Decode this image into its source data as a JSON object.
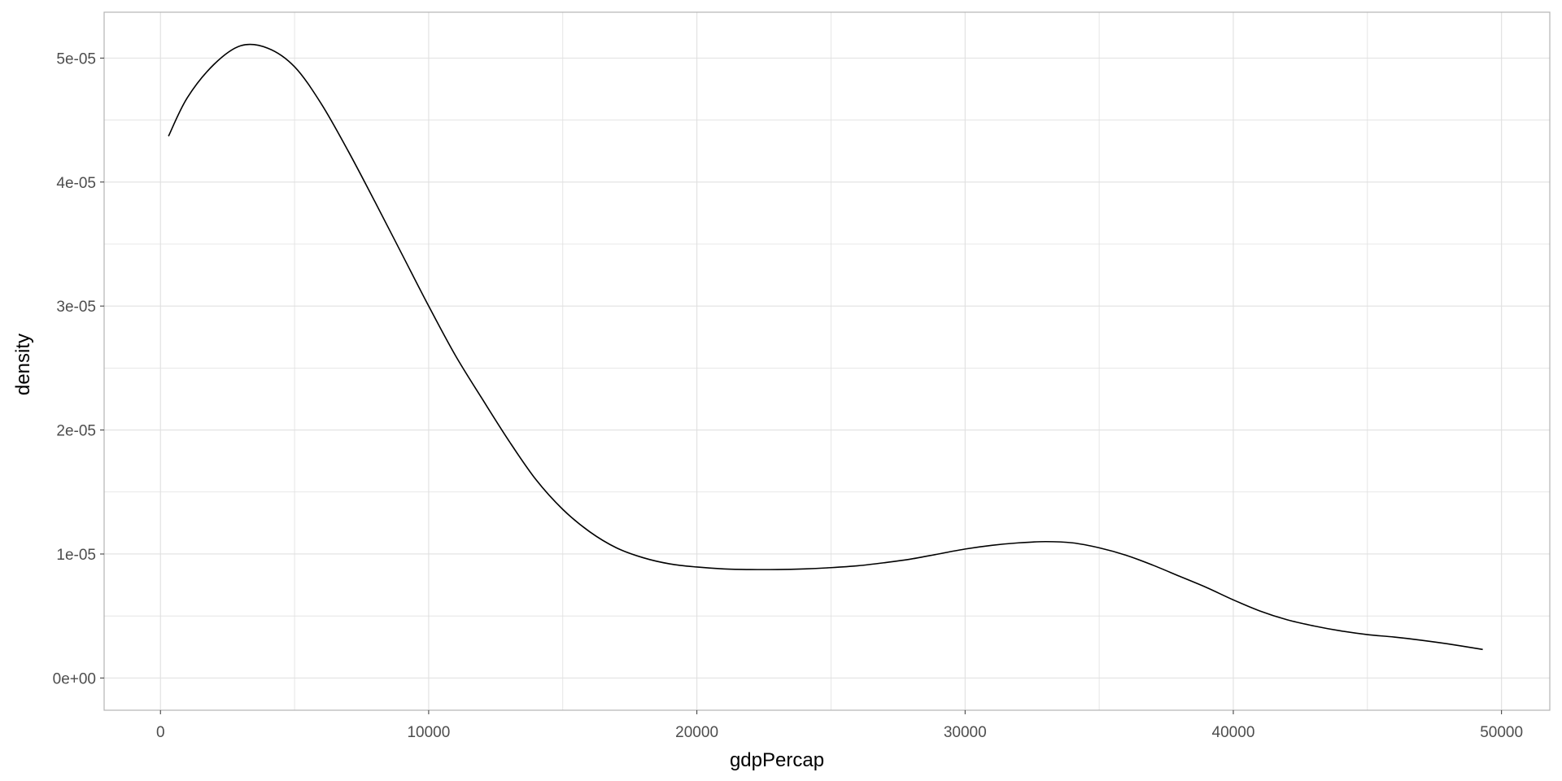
{
  "chart_data": {
    "type": "line",
    "title": "",
    "xlabel": "gdpPercap",
    "ylabel": "density",
    "xlim": [
      -2100,
      51800
    ],
    "ylim": [
      -2.6e-06,
      5.37e-05
    ],
    "x_ticks": [
      0,
      10000,
      20000,
      30000,
      40000,
      50000
    ],
    "x_tick_labels": [
      "0",
      "10000",
      "20000",
      "30000",
      "40000",
      "50000"
    ],
    "y_ticks": [
      0,
      1e-05,
      2e-05,
      3e-05,
      4e-05,
      5e-05
    ],
    "y_tick_labels": [
      "0e+00",
      "1e-05",
      "2e-05",
      "3e-05",
      "4e-05",
      "5e-05"
    ],
    "grid": true,
    "legend": "none",
    "colors": {
      "line": "#000000",
      "grid": "#e0e0e0",
      "panel_border": "#b3b3b3",
      "tick_label": "#4d4d4d"
    },
    "series": [
      {
        "x": [
          300,
          1000,
          2000,
          3000,
          4000,
          5000,
          6000,
          7000,
          8000,
          9000,
          10000,
          11000,
          12000,
          13000,
          14000,
          15000,
          16000,
          17000,
          18000,
          19000,
          20000,
          21000,
          22000,
          23000,
          24000,
          25000,
          26000,
          27000,
          28000,
          29000,
          30000,
          31000,
          32000,
          33000,
          34000,
          35000,
          36000,
          37000,
          38000,
          39000,
          40000,
          41000,
          42000,
          43000,
          44000,
          45000,
          46000,
          47000,
          48000,
          49300
        ],
        "y": [
          4.37e-05,
          4.68e-05,
          4.95e-05,
          5.1e-05,
          5.08e-05,
          4.93e-05,
          4.63e-05,
          4.25e-05,
          3.84e-05,
          3.42e-05,
          3e-05,
          2.6e-05,
          2.25e-05,
          1.91e-05,
          1.6e-05,
          1.36e-05,
          1.18e-05,
          1.05e-05,
          9.7e-06,
          9.2e-06,
          8.95e-06,
          8.8e-06,
          8.75e-06,
          8.75e-06,
          8.8e-06,
          8.9e-06,
          9.05e-06,
          9.3e-06,
          9.6e-06,
          1e-05,
          1.04e-05,
          1.07e-05,
          1.09e-05,
          1.1e-05,
          1.09e-05,
          1.05e-05,
          9.9e-06,
          9.1e-06,
          8.2e-06,
          7.3e-06,
          6.3e-06,
          5.4e-06,
          4.7e-06,
          4.2e-06,
          3.8e-06,
          3.5e-06,
          3.3e-06,
          3.05e-06,
          2.75e-06,
          2.3e-06
        ]
      }
    ]
  }
}
